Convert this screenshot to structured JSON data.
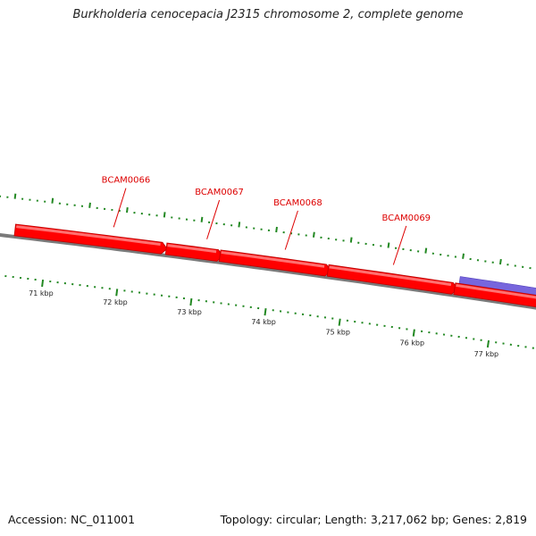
{
  "title": "Burkholderia cenocepacia J2315 chromosome 2, complete genome",
  "accession": "Accession: NC_011001",
  "stats": "Topology: circular; Length: 3,217,062 bp; Genes: 2,819",
  "colors": {
    "backbone": "#7a7a7a",
    "gene_forward": "#ff0000",
    "gene_other": "#7766dd",
    "ticks": "#228822",
    "labels": "#dd0000",
    "scale_text": "#222222"
  },
  "scale": {
    "start_kbp": 70.3,
    "end_kbp": 77.7
  },
  "scale_labels": [
    {
      "text": "71 kbp",
      "kbp": 71
    },
    {
      "text": "72 kbp",
      "kbp": 72
    },
    {
      "text": "73 kbp",
      "kbp": 73
    },
    {
      "text": "74 kbp",
      "kbp": 74
    },
    {
      "text": "75 kbp",
      "kbp": 75
    },
    {
      "text": "76 kbp",
      "kbp": 76
    },
    {
      "text": "77 kbp",
      "kbp": 77
    }
  ],
  "genes": [
    {
      "start_kbp": 70.55,
      "end_kbp": 72.52
    },
    {
      "start_kbp": 72.58,
      "end_kbp": 73.27
    },
    {
      "start_kbp": 73.3,
      "end_kbp": 74.72
    },
    {
      "start_kbp": 74.75,
      "end_kbp": 76.42
    },
    {
      "start_kbp": 76.45,
      "end_kbp": 77.7
    }
  ],
  "other_features": [
    {
      "start_kbp": 76.5,
      "end_kbp": 77.7
    }
  ],
  "gene_labels": [
    {
      "text": "BCAM0066",
      "kbp": 71.85
    },
    {
      "text": "BCAM0067",
      "kbp": 73.1
    },
    {
      "text": "BCAM0068",
      "kbp": 74.15
    },
    {
      "text": "BCAM0069",
      "kbp": 75.6
    }
  ]
}
